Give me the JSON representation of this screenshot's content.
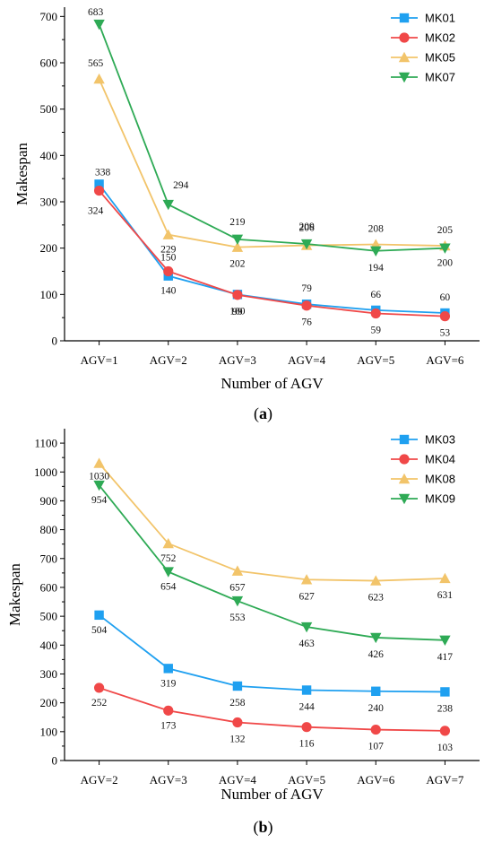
{
  "chart_data": [
    {
      "type": "line",
      "panel_label": "(a)",
      "title": "",
      "xlabel": "Number of AGV",
      "ylabel": "Makespan",
      "categories": [
        "AGV=1",
        "AGV=2",
        "AGV=3",
        "AGV=4",
        "AGV=5",
        "AGV=6"
      ],
      "ylim": [
        0,
        720
      ],
      "yticks": [
        0,
        100,
        200,
        300,
        400,
        500,
        600,
        700
      ],
      "legend_position": "top-right",
      "series": [
        {
          "name": "MK01",
          "color": "#1fa0f0",
          "marker": "square",
          "values": [
            338,
            140,
            100,
            79,
            66,
            60
          ]
        },
        {
          "name": "MK02",
          "color": "#f04848",
          "marker": "circle",
          "values": [
            324,
            150,
            99,
            76,
            59,
            53
          ]
        },
        {
          "name": "MK05",
          "color": "#f2c46a",
          "marker": "triangle-up",
          "values": [
            565,
            229,
            202,
            206,
            208,
            205
          ]
        },
        {
          "name": "MK07",
          "color": "#2eaa55",
          "marker": "triangle-down",
          "values": [
            683,
            294,
            219,
            209,
            194,
            200
          ]
        }
      ]
    },
    {
      "type": "line",
      "panel_label": "(b)",
      "title": "",
      "xlabel": "Number of AGV",
      "ylabel": "Makespan",
      "categories": [
        "AGV=2",
        "AGV=3",
        "AGV=4",
        "AGV=5",
        "AGV=6",
        "AGV=7"
      ],
      "ylim": [
        0,
        1150
      ],
      "yticks": [
        0,
        100,
        200,
        300,
        400,
        500,
        600,
        700,
        800,
        900,
        1000,
        1100
      ],
      "legend_position": "top-right",
      "series": [
        {
          "name": "MK03",
          "color": "#1fa0f0",
          "marker": "square",
          "values": [
            504,
            319,
            258,
            244,
            240,
            238
          ]
        },
        {
          "name": "MK04",
          "color": "#f04848",
          "marker": "circle",
          "values": [
            252,
            173,
            132,
            116,
            107,
            103
          ]
        },
        {
          "name": "MK08",
          "color": "#f2c46a",
          "marker": "triangle-up",
          "values": [
            1030,
            752,
            657,
            627,
            623,
            631
          ]
        },
        {
          "name": "MK09",
          "color": "#2eaa55",
          "marker": "triangle-down",
          "values": [
            954,
            654,
            553,
            463,
            426,
            417
          ]
        }
      ]
    }
  ]
}
